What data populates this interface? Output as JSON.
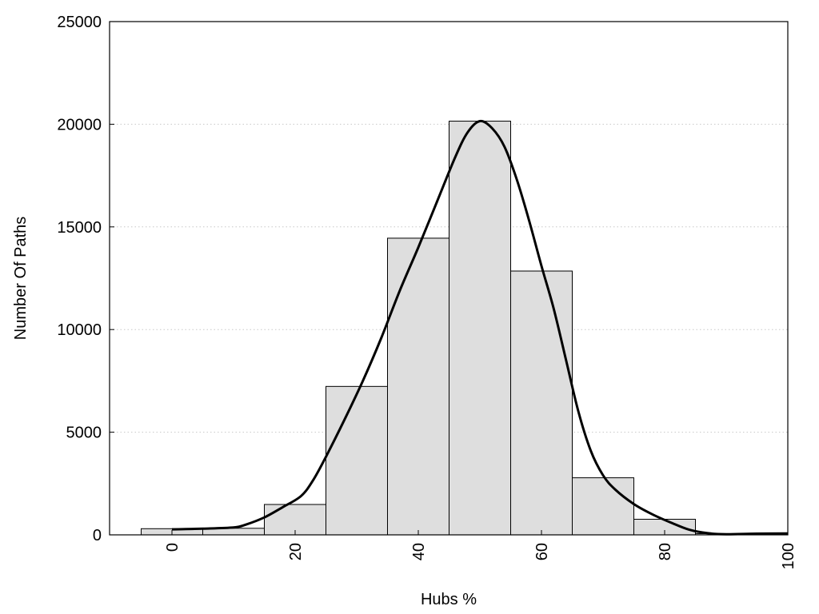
{
  "chart_data": {
    "type": "bar",
    "xlabel": "Hubs %",
    "ylabel": "Number Of Paths",
    "xlim": [
      -10,
      100
    ],
    "ylim": [
      0,
      25000
    ],
    "x_ticks": [
      0,
      20,
      40,
      60,
      80,
      100
    ],
    "y_ticks": [
      0,
      5000,
      10000,
      15000,
      20000,
      25000
    ],
    "grid": "horizontal dotted",
    "bar_width": 10,
    "bars": [
      {
        "x": 0,
        "y": 300
      },
      {
        "x": 10,
        "y": 320
      },
      {
        "x": 20,
        "y": 1480
      },
      {
        "x": 30,
        "y": 7230
      },
      {
        "x": 40,
        "y": 14450
      },
      {
        "x": 50,
        "y": 20150
      },
      {
        "x": 60,
        "y": 12850
      },
      {
        "x": 70,
        "y": 2780
      },
      {
        "x": 80,
        "y": 760
      },
      {
        "x": 90,
        "y": 60
      }
    ],
    "curve": {
      "x": [
        0,
        5,
        10,
        12,
        15,
        18,
        21,
        23,
        25,
        28,
        31,
        34,
        37,
        40,
        43,
        46,
        48,
        50,
        52,
        54,
        56,
        58,
        60,
        62,
        64,
        66,
        68,
        70,
        72,
        75,
        78,
        81,
        84,
        87,
        90,
        95,
        100
      ],
      "y": [
        270,
        300,
        360,
        500,
        850,
        1350,
        1900,
        2700,
        3800,
        5600,
        7500,
        9600,
        11900,
        14000,
        16200,
        18400,
        19600,
        20150,
        19800,
        18900,
        17300,
        15300,
        13100,
        11000,
        8500,
        6000,
        4100,
        2900,
        2200,
        1500,
        1000,
        600,
        250,
        80,
        30,
        60,
        70
      ]
    },
    "colors": {
      "bar_fill": "#dedede",
      "bar_stroke": "#000000",
      "curve": "#000000",
      "grid": "#c8c8c8"
    }
  }
}
